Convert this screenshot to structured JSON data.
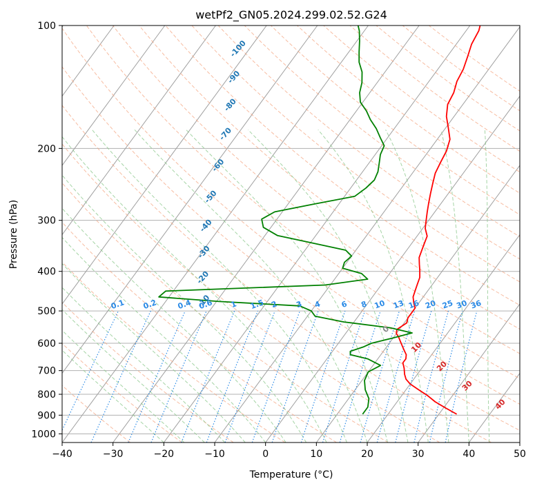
{
  "chart_data": {
    "type": "line",
    "title": "wetPf2_GN05.2024.299.02.52.G24",
    "xlabel": "Temperature (°C)",
    "ylabel": "Pressure (hPa)",
    "xlim": [
      -40,
      50
    ],
    "ylim": [
      1050,
      100
    ],
    "y_scale": "log",
    "grid": true,
    "x_ticks": [
      -40,
      -30,
      -20,
      -10,
      0,
      10,
      20,
      30,
      40,
      50
    ],
    "y_ticks": [
      100,
      200,
      300,
      400,
      500,
      600,
      700,
      800,
      900,
      1000
    ],
    "series": [
      {
        "role": "temperature",
        "color": "#ff0000",
        "points": [
          [
            33.5,
            895
          ],
          [
            30.5,
            865
          ],
          [
            27.5,
            835
          ],
          [
            25.0,
            805
          ],
          [
            22.5,
            780
          ],
          [
            20.0,
            755
          ],
          [
            18.5,
            735
          ],
          [
            17.5,
            715
          ],
          [
            16.5,
            690
          ],
          [
            15.5,
            670
          ],
          [
            15.5,
            655
          ],
          [
            15.0,
            640
          ],
          [
            14.0,
            625
          ],
          [
            13.0,
            610
          ],
          [
            12.0,
            595
          ],
          [
            11.0,
            580
          ],
          [
            10.0,
            568
          ],
          [
            9.5,
            555
          ],
          [
            10.0,
            545
          ],
          [
            10.5,
            535
          ],
          [
            10.0,
            520
          ],
          [
            10.0,
            505
          ],
          [
            10.0,
            492
          ],
          [
            9.0,
            478
          ],
          [
            8.0,
            462
          ],
          [
            7.5,
            446
          ],
          [
            7.0,
            430
          ],
          [
            6.5,
            414
          ],
          [
            5.5,
            398
          ],
          [
            4.5,
            384
          ],
          [
            3.5,
            370
          ],
          [
            3.0,
            356
          ],
          [
            2.5,
            342
          ],
          [
            2.0,
            328
          ],
          [
            0.5,
            314
          ],
          [
            -0.5,
            300
          ],
          [
            -1.5,
            286
          ],
          [
            -2.5,
            272
          ],
          [
            -3.5,
            258
          ],
          [
            -4.5,
            244
          ],
          [
            -5.5,
            230
          ],
          [
            -6.0,
            217
          ],
          [
            -6.5,
            203
          ],
          [
            -7.5,
            190
          ],
          [
            -9.5,
            178
          ],
          [
            -11.5,
            167
          ],
          [
            -13.0,
            156
          ],
          [
            -13.5,
            146
          ],
          [
            -14.5,
            137
          ],
          [
            -15.0,
            128
          ],
          [
            -16.0,
            119
          ],
          [
            -17.0,
            111
          ],
          [
            -17.5,
            103
          ],
          [
            -18.0,
            100
          ]
        ]
      },
      {
        "role": "dewpoint",
        "color": "#008000",
        "points": [
          [
            15.0,
            895
          ],
          [
            15.0,
            860
          ],
          [
            14.0,
            820
          ],
          [
            12.0,
            780
          ],
          [
            10.5,
            740
          ],
          [
            10.0,
            705
          ],
          [
            11.5,
            680
          ],
          [
            8.0,
            655
          ],
          [
            4.0,
            640
          ],
          [
            3.5,
            628
          ],
          [
            5.5,
            612
          ],
          [
            6.5,
            600
          ],
          [
            10.0,
            582
          ],
          [
            13.0,
            566
          ],
          [
            8.0,
            550
          ],
          [
            -2.0,
            532
          ],
          [
            -8.5,
            515
          ],
          [
            -10.0,
            500
          ],
          [
            -13.0,
            486
          ],
          [
            -29.5,
            474
          ],
          [
            -42.0,
            462
          ],
          [
            -41.5,
            447
          ],
          [
            -11.0,
            432
          ],
          [
            -3.5,
            418
          ],
          [
            -5.5,
            405
          ],
          [
            -10.0,
            393
          ],
          [
            -10.5,
            380
          ],
          [
            -10.0,
            367
          ],
          [
            -12.0,
            355
          ],
          [
            -19.0,
            342
          ],
          [
            -27.5,
            327
          ],
          [
            -31.5,
            312
          ],
          [
            -33.0,
            298
          ],
          [
            -31.5,
            286
          ],
          [
            -25.0,
            274
          ],
          [
            -18.0,
            262
          ],
          [
            -17.0,
            250
          ],
          [
            -16.5,
            239
          ],
          [
            -17.0,
            228
          ],
          [
            -18.0,
            217
          ],
          [
            -19.0,
            207
          ],
          [
            -19.5,
            197
          ],
          [
            -21.5,
            188
          ],
          [
            -23.5,
            179
          ],
          [
            -26.0,
            170
          ],
          [
            -28.0,
            162
          ],
          [
            -30.5,
            154
          ],
          [
            -32.0,
            146
          ],
          [
            -33.0,
            138
          ],
          [
            -34.5,
            130
          ],
          [
            -36.5,
            123
          ],
          [
            -38.0,
            116
          ],
          [
            -39.5,
            109
          ],
          [
            -41.0,
            103
          ],
          [
            -42.0,
            100
          ]
        ]
      }
    ],
    "background": {
      "isotherm_color": "#a0a0a0",
      "dry_adiabat_color": "#f4a582",
      "moist_adiabat_color": "#8fc98f",
      "mixing_ratio_color": "#2a8ae6"
    },
    "dry_adiabat_labels": [
      "-100",
      "-90",
      "-80",
      "-70",
      "-60",
      "-50",
      "-40",
      "-30",
      "-20",
      "-10"
    ],
    "mixing_ratio_labels": [
      "0.1",
      "0.2",
      "0.4",
      "0.6",
      "1",
      "1.5",
      "2",
      "3",
      "4",
      "6",
      "8",
      "10",
      "13",
      "16",
      "20",
      "25",
      "30",
      "36"
    ],
    "moist_adiabat_labels": [
      "0",
      "10",
      "20",
      "30",
      "40"
    ]
  }
}
